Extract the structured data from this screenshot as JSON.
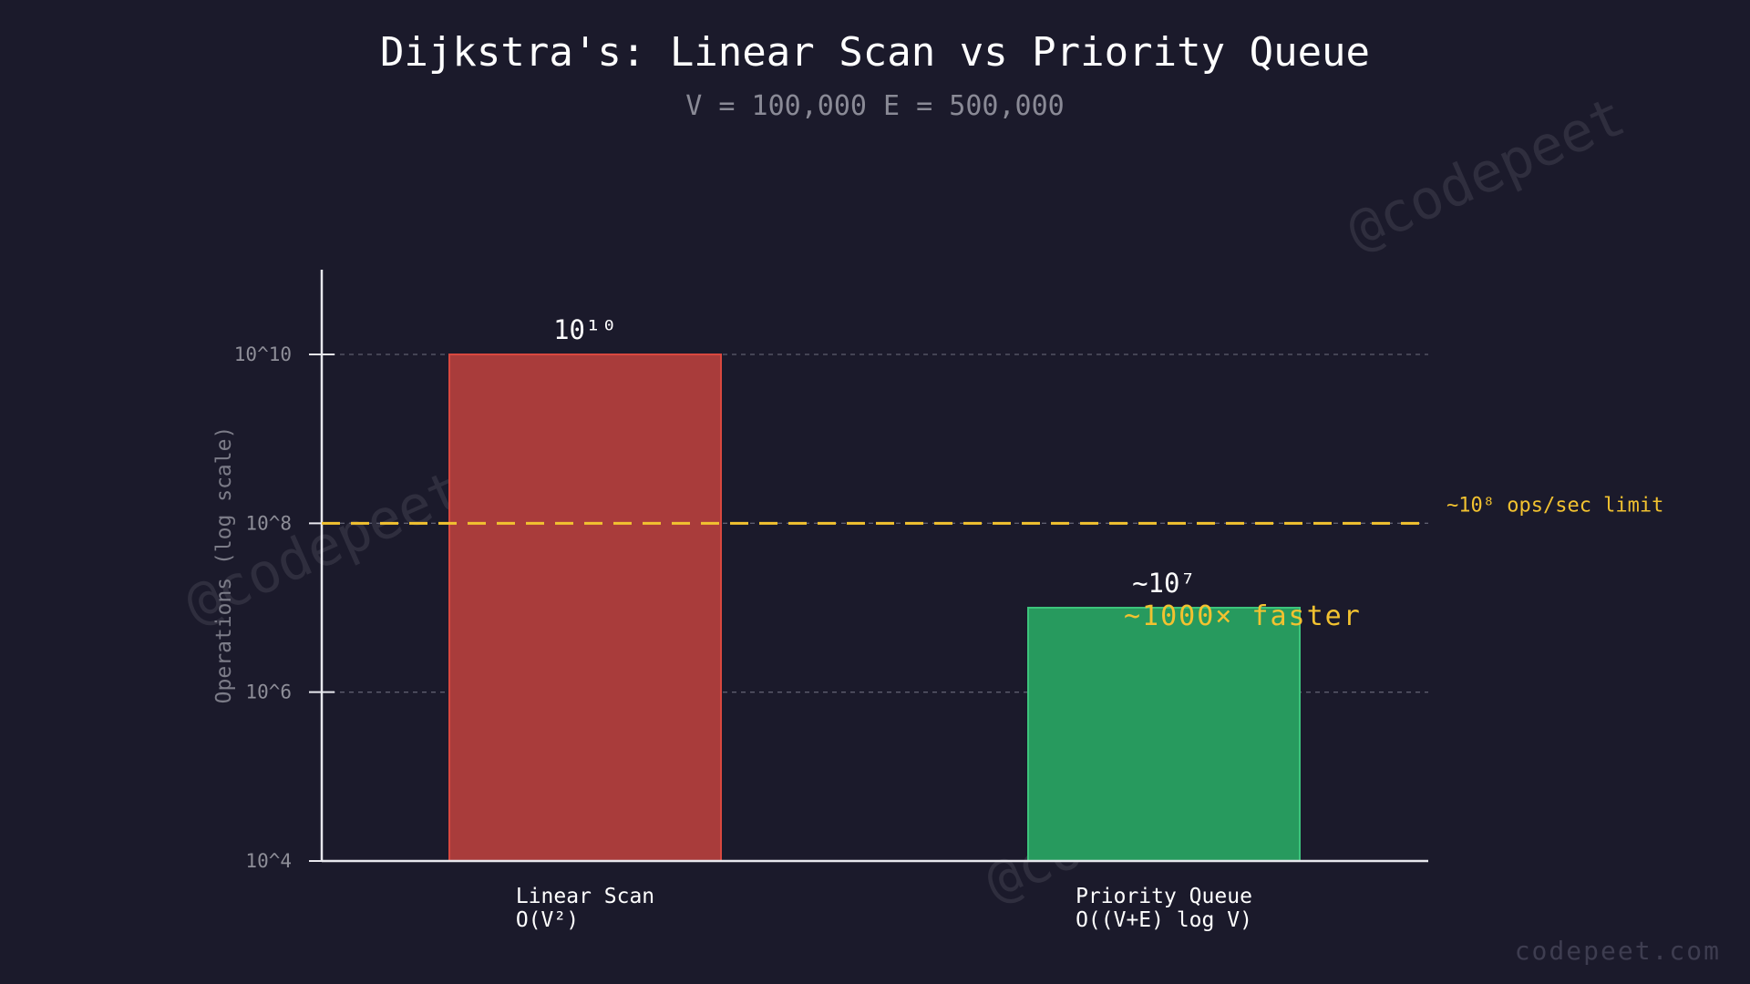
{
  "chart_data": {
    "type": "bar",
    "title": "Dijkstra's: Linear Scan vs Priority Queue",
    "subtitle": "V = 100,000  E = 500,000",
    "ylabel": "Operations (log scale)",
    "xlabel": "",
    "y_scale": "log",
    "ylim": [
      10000,
      10000000000
    ],
    "yticks": [
      10000,
      1000000,
      100000000,
      10000000000
    ],
    "ytick_labels": [
      "10^4",
      "10^6",
      "10^8",
      "10^10"
    ],
    "grid": true,
    "categories": [
      {
        "name": "Linear Scan",
        "complexity": "O(V²)"
      },
      {
        "name": "Priority Queue",
        "complexity": "O((V+E) log V)"
      }
    ],
    "values": [
      10000000000,
      10000000
    ],
    "value_labels": [
      "10¹⁰",
      "~10⁷"
    ],
    "colors": [
      "#a93c3b",
      "#279a5e"
    ],
    "edge_colors": [
      "#d9483f",
      "#3cc47c"
    ],
    "reference_line": {
      "value": 100000000,
      "label": "~10⁸ ops/sec limit",
      "color": "#f2c230"
    },
    "annotation": "~1000× faster",
    "annotation_color": "#f2c230"
  },
  "watermark": "@codepeet",
  "brand": "codepeet.com"
}
